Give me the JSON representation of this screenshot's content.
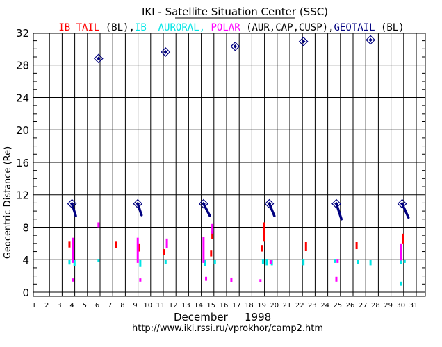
{
  "header": {
    "title": "IKI - Satellite Situation Center (SSC)",
    "subtitle_parts": [
      {
        "text": "IB_TAIL",
        "color": "#ff0000"
      },
      {
        "text": " (BL),",
        "color": "#000000"
      },
      {
        "text": "IB__AURORAL,",
        "color": "#00e5e5"
      },
      {
        "text": " POLAR",
        "color": "#ff00ff"
      },
      {
        "text": " (AUR,CAP,CUSP),",
        "color": "#000000"
      },
      {
        "text": "GEOTAIL",
        "color": "#000080"
      },
      {
        "text": " (BL)",
        "color": "#000000"
      }
    ]
  },
  "footer": {
    "month_label": "December",
    "year_label": "1998",
    "url": "http://www.iki.rssi.ru/vprokhor/camp2.htm"
  },
  "chart_data": {
    "type": "scatter",
    "ylabel": "Geocentric  Distance  (Re)",
    "xlim": [
      1,
      31
    ],
    "ylim": [
      0,
      32
    ],
    "x_ticks": [
      1,
      2,
      3,
      4,
      5,
      6,
      7,
      8,
      9,
      10,
      11,
      12,
      13,
      14,
      15,
      16,
      17,
      18,
      19,
      20,
      21,
      22,
      23,
      24,
      25,
      26,
      27,
      28,
      29,
      30,
      31
    ],
    "y_ticks": [
      0,
      4,
      8,
      12,
      16,
      20,
      24,
      28,
      32
    ],
    "grid": true,
    "series": [
      {
        "name": "IB_TAIL",
        "color": "#ff0000",
        "segments": [
          {
            "x": 3.8,
            "y": [
              5.5,
              6.3
            ]
          },
          {
            "x": 4.1,
            "y": [
              5.3,
              6.5
            ]
          },
          {
            "x": 7.5,
            "y": [
              5.4,
              6.3
            ]
          },
          {
            "x": 9.3,
            "y": [
              5.0,
              6.0
            ]
          },
          {
            "x": 11.3,
            "y": [
              4.6,
              5.3
            ]
          },
          {
            "x": 15.0,
            "y": [
              4.4,
              5.2
            ]
          },
          {
            "x": 15.1,
            "y": [
              6.5,
              7.5
            ]
          },
          {
            "x": 19.0,
            "y": [
              5.0,
              5.8
            ]
          },
          {
            "x": 19.2,
            "y": [
              6.3,
              8.6
            ]
          },
          {
            "x": 22.5,
            "y": [
              5.1,
              6.2
            ]
          },
          {
            "x": 26.5,
            "y": [
              5.3,
              6.2
            ]
          },
          {
            "x": 30.2,
            "y": [
              6.0,
              7.2
            ]
          }
        ]
      },
      {
        "name": "IB__AURORAL",
        "color": "#00e5e5",
        "segments": [
          {
            "x": 3.8,
            "y": [
              3.4,
              4.0
            ]
          },
          {
            "x": 4.2,
            "y": [
              3.2,
              4.0
            ]
          },
          {
            "x": 6.1,
            "y": [
              3.7,
              4.1
            ]
          },
          {
            "x": 9.4,
            "y": [
              3.1,
              4.0
            ]
          },
          {
            "x": 11.4,
            "y": [
              3.5,
              4.0
            ]
          },
          {
            "x": 14.5,
            "y": [
              3.2,
              4.0
            ]
          },
          {
            "x": 15.3,
            "y": [
              3.5,
              4.0
            ]
          },
          {
            "x": 19.1,
            "y": [
              3.5,
              4.1
            ]
          },
          {
            "x": 19.4,
            "y": [
              3.3,
              4.1
            ]
          },
          {
            "x": 19.8,
            "y": [
              3.3,
              4.0
            ]
          },
          {
            "x": 22.3,
            "y": [
              3.3,
              4.1
            ]
          },
          {
            "x": 24.8,
            "y": [
              3.6,
              4.1
            ]
          },
          {
            "x": 26.6,
            "y": [
              3.5,
              4.0
            ]
          },
          {
            "x": 27.6,
            "y": [
              3.3,
              4.0
            ]
          },
          {
            "x": 30.0,
            "y": [
              3.5,
              4.2
            ]
          },
          {
            "x": 30.3,
            "y": [
              3.6,
              4.0
            ]
          },
          {
            "x": 30.0,
            "y": [
              0.8,
              1.3
            ]
          }
        ]
      },
      {
        "name": "POLAR",
        "color": "#ff00ff",
        "segments": [
          {
            "x": 4.1,
            "y": [
              3.6,
              6.7
            ]
          },
          {
            "x": 4.1,
            "y": [
              1.3,
              1.7
            ]
          },
          {
            "x": 6.1,
            "y": [
              8.0,
              8.6
            ]
          },
          {
            "x": 9.2,
            "y": [
              3.6,
              6.7
            ]
          },
          {
            "x": 9.4,
            "y": [
              1.3,
              1.7
            ]
          },
          {
            "x": 11.5,
            "y": [
              5.4,
              6.6
            ]
          },
          {
            "x": 14.4,
            "y": [
              3.6,
              6.8
            ]
          },
          {
            "x": 14.6,
            "y": [
              1.4,
              1.9
            ]
          },
          {
            "x": 15.1,
            "y": [
              7.2,
              8.4
            ]
          },
          {
            "x": 16.6,
            "y": [
              1.2,
              1.8
            ]
          },
          {
            "x": 18.9,
            "y": [
              1.2,
              1.6
            ]
          },
          {
            "x": 19.7,
            "y": [
              3.5,
              4.0
            ]
          },
          {
            "x": 24.9,
            "y": [
              1.3,
              1.9
            ]
          },
          {
            "x": 25.0,
            "y": [
              3.6,
              4.1
            ]
          },
          {
            "x": 30.0,
            "y": [
              3.9,
              6.0
            ]
          }
        ]
      },
      {
        "name": "GEOTAIL",
        "color": "#000080",
        "markers": [
          {
            "x": 6.1,
            "y": 28.8
          },
          {
            "x": 11.4,
            "y": 29.6
          },
          {
            "x": 16.9,
            "y": 30.3
          },
          {
            "x": 22.3,
            "y": 30.9
          },
          {
            "x": 27.6,
            "y": 31.1
          },
          {
            "x": 4.0,
            "y": 10.9
          },
          {
            "x": 9.2,
            "y": 10.9
          },
          {
            "x": 14.4,
            "y": 10.9
          },
          {
            "x": 19.6,
            "y": 10.9
          },
          {
            "x": 24.9,
            "y": 10.9
          },
          {
            "x": 30.1,
            "y": 10.9
          }
        ],
        "traces": [
          {
            "x": [
              4.0,
              4.3
            ],
            "y": [
              10.9,
              9.4
            ]
          },
          {
            "x": [
              9.2,
              9.5
            ],
            "y": [
              10.9,
              9.5
            ]
          },
          {
            "x": [
              14.4,
              14.9
            ],
            "y": [
              10.9,
              9.4
            ]
          },
          {
            "x": [
              19.6,
              20.0
            ],
            "y": [
              10.9,
              9.4
            ]
          },
          {
            "x": [
              24.9,
              25.3
            ],
            "y": [
              10.9,
              9.0
            ]
          },
          {
            "x": [
              30.1,
              30.6
            ],
            "y": [
              10.9,
              9.2
            ]
          }
        ]
      }
    ]
  }
}
